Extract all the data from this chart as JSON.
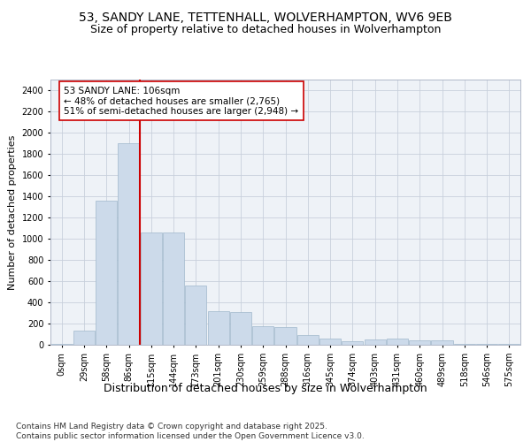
{
  "title1": "53, SANDY LANE, TETTENHALL, WOLVERHAMPTON, WV6 9EB",
  "title2": "Size of property relative to detached houses in Wolverhampton",
  "xlabel": "Distribution of detached houses by size in Wolverhampton",
  "ylabel": "Number of detached properties",
  "footnote": "Contains HM Land Registry data © Crown copyright and database right 2025.\nContains public sector information licensed under the Open Government Licence v3.0.",
  "property_label": "53 SANDY LANE: 106sqm",
  "annotation_line1": "← 48% of detached houses are smaller (2,765)",
  "annotation_line2": "51% of semi-detached houses are larger (2,948) →",
  "bar_color": "#ccdaea",
  "bar_edge_color": "#a0b8cc",
  "vline_color": "#cc0000",
  "annotation_box_edge": "#cc0000",
  "grid_color": "#c8d0dc",
  "bg_color": "#eef2f7",
  "categories": [
    "0sqm",
    "29sqm",
    "58sqm",
    "86sqm",
    "115sqm",
    "144sqm",
    "173sqm",
    "201sqm",
    "230sqm",
    "259sqm",
    "288sqm",
    "316sqm",
    "345sqm",
    "374sqm",
    "403sqm",
    "431sqm",
    "460sqm",
    "489sqm",
    "518sqm",
    "546sqm",
    "575sqm"
  ],
  "values": [
    5,
    130,
    1360,
    1900,
    1060,
    1060,
    560,
    320,
    310,
    175,
    170,
    90,
    55,
    35,
    50,
    55,
    40,
    40,
    10,
    5,
    10
  ],
  "ylim": [
    0,
    2500
  ],
  "yticks": [
    0,
    200,
    400,
    600,
    800,
    1000,
    1200,
    1400,
    1600,
    1800,
    2000,
    2200,
    2400
  ],
  "vline_x": 3.5,
  "title1_fontsize": 10,
  "title2_fontsize": 9,
  "xlabel_fontsize": 9,
  "ylabel_fontsize": 8,
  "tick_fontsize": 7,
  "annotation_fontsize": 7.5,
  "footnote_fontsize": 6.5
}
